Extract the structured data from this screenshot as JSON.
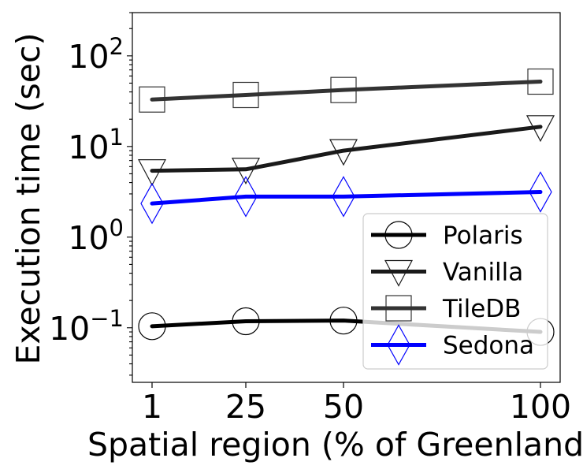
{
  "chart_data": {
    "type": "line",
    "title": "",
    "xlabel": "Spatial region (% of Greenland)",
    "ylabel": "Execution time (sec)",
    "x": [
      1,
      25,
      50,
      100
    ],
    "x_ticks": [
      "1",
      "25",
      "50",
      "100"
    ],
    "y_scale": "log",
    "ylim": [
      0.025,
      300
    ],
    "y_ticks": [
      {
        "value": 0.1,
        "base": "10",
        "exp": "−1"
      },
      {
        "value": 1,
        "base": "10",
        "exp": "0"
      },
      {
        "value": 10,
        "base": "10",
        "exp": "1"
      },
      {
        "value": 100,
        "base": "10",
        "exp": "2"
      }
    ],
    "grid": false,
    "legend_position": "lower-right",
    "series": [
      {
        "name": "Polaris",
        "values": [
          0.104,
          0.118,
          0.12,
          0.09
        ],
        "color": "#000000",
        "marker": "circle"
      },
      {
        "name": "Vanilla",
        "values": [
          5.4,
          5.6,
          9.0,
          16.5
        ],
        "color": "#1a1a1a",
        "marker": "triangle-down"
      },
      {
        "name": "TileDB",
        "values": [
          33,
          37,
          42,
          52
        ],
        "color": "#333333",
        "marker": "square"
      },
      {
        "name": "Sedona",
        "values": [
          2.35,
          2.8,
          2.8,
          3.15
        ],
        "color": "#0000ff",
        "marker": "diamond"
      }
    ]
  }
}
